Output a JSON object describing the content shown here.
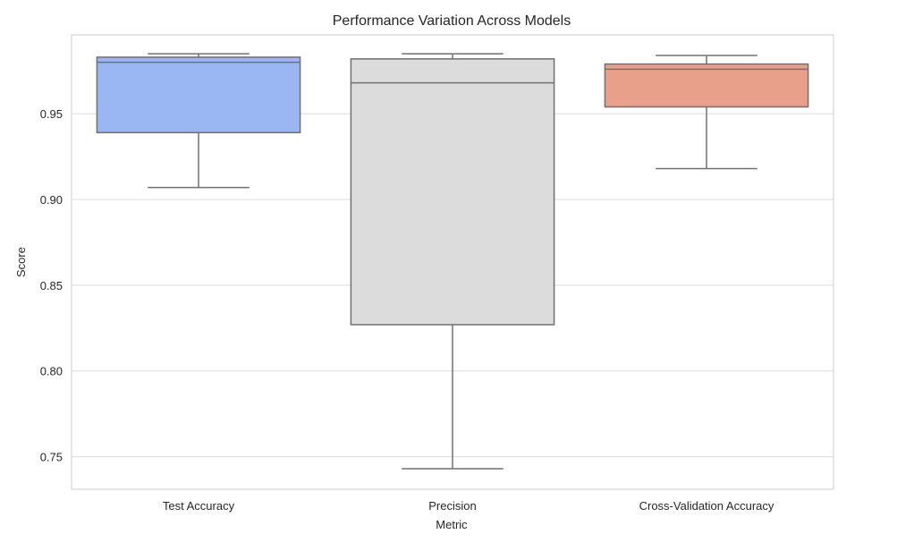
{
  "chart_data": {
    "type": "box",
    "title": "Performance Variation Across Models",
    "xlabel": "Metric",
    "ylabel": "Score",
    "ylim": [
      0.731,
      0.996
    ],
    "yticks": [
      0.75,
      0.8,
      0.85,
      0.9,
      0.95
    ],
    "ytick_labels": [
      "0.75",
      "0.80",
      "0.85",
      "0.90",
      "0.95"
    ],
    "grid": true,
    "categories": [
      "Test Accuracy",
      "Precision",
      "Cross-Validation Accuracy"
    ],
    "boxes": [
      {
        "category": "Test Accuracy",
        "whisker_low": 0.907,
        "q1": 0.939,
        "median": 0.98,
        "q3": 0.983,
        "whisker_high": 0.985,
        "color": "#9bb7f3"
      },
      {
        "category": "Precision",
        "whisker_low": 0.743,
        "q1": 0.827,
        "median": 0.968,
        "q3": 0.982,
        "whisker_high": 0.985,
        "color": "#dcdcdc"
      },
      {
        "category": "Cross-Validation Accuracy",
        "whisker_low": 0.918,
        "q1": 0.954,
        "median": 0.976,
        "q3": 0.979,
        "whisker_high": 0.984,
        "color": "#e8a08a"
      }
    ]
  }
}
